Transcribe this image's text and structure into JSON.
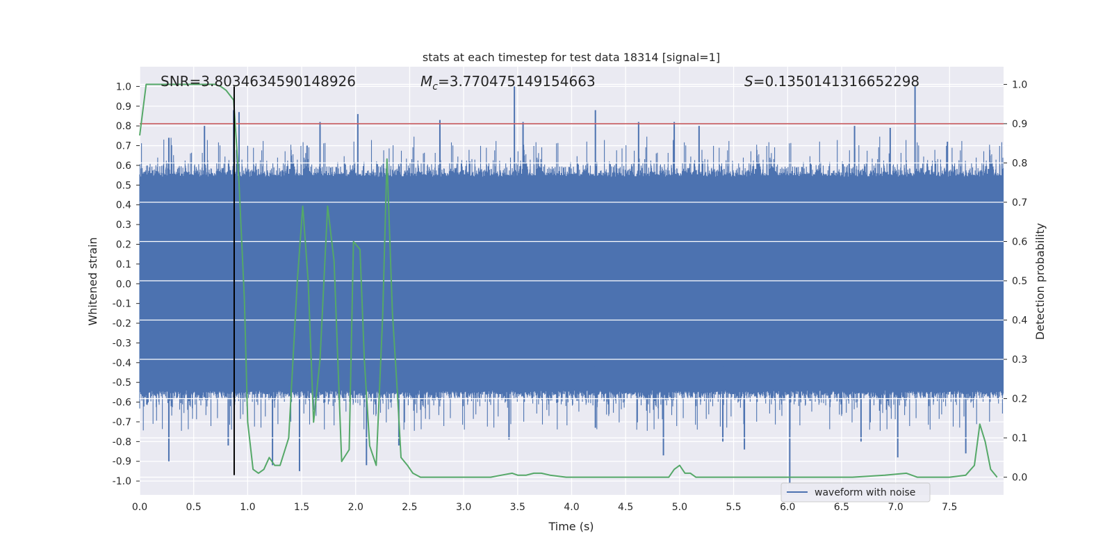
{
  "chart_data": {
    "type": "line",
    "title": "stats at each timestep for test data 18314 [signal=1]",
    "xlabel": "Time (s)",
    "ylabel": "Whitened strain",
    "y2label": "Detection probability",
    "xlim": [
      0.0,
      8.0
    ],
    "ylim": [
      -1.07,
      1.1
    ],
    "y2lim": [
      -0.045,
      1.045
    ],
    "xticks": [
      "0.0",
      "0.5",
      "1.0",
      "1.5",
      "2.0",
      "2.5",
      "3.0",
      "3.5",
      "4.0",
      "4.5",
      "5.0",
      "5.5",
      "6.0",
      "6.5",
      "7.0",
      "7.5"
    ],
    "yticks": [
      "1.0",
      "0.9",
      "0.8",
      "0.7",
      "0.6",
      "0.5",
      "0.4",
      "0.3",
      "0.2",
      "0.1",
      "0.0",
      "-0.1",
      "-0.2",
      "-0.3",
      "-0.4",
      "-0.5",
      "-0.6",
      "-0.7",
      "-0.8",
      "-0.9",
      "-1.0"
    ],
    "y2ticks": [
      "1.0",
      "0.9",
      "0.8",
      "0.7",
      "0.6",
      "0.5",
      "0.4",
      "0.3",
      "0.2",
      "0.1",
      "0.0"
    ],
    "grid": true,
    "legend": {
      "placement": "lower-right",
      "entries": [
        "waveform with noise"
      ]
    },
    "annotations": {
      "snr": "SNR=3.8034634590148926",
      "mc_symbol": "M",
      "mc_sub": "c",
      "mc_value": "=3.770475149154663",
      "s_symbol": "S",
      "s_value": "=0.1350141316652298"
    },
    "threshold": {
      "axis": "right",
      "value": 0.9,
      "color": "#c44e52"
    },
    "marker_line": {
      "x": 0.875,
      "ymin": -0.97,
      "ymax": 1.0,
      "color": "#000000"
    },
    "waveform": {
      "name": "waveform with noise",
      "color": "#4c72b0",
      "sample_rate": 2048,
      "core_amplitude": 0.42,
      "peaks_positive": [
        [
          0.27,
          0.74
        ],
        [
          0.6,
          0.8
        ],
        [
          0.87,
          0.88
        ],
        [
          0.92,
          0.87
        ],
        [
          1.55,
          0.7
        ],
        [
          1.67,
          0.82
        ],
        [
          2.02,
          0.86
        ],
        [
          2.78,
          0.83
        ],
        [
          3.47,
          1.0
        ],
        [
          3.55,
          0.82
        ],
        [
          4.22,
          0.88
        ],
        [
          4.62,
          0.82
        ],
        [
          4.95,
          0.82
        ],
        [
          5.18,
          0.8
        ],
        [
          6.62,
          0.8
        ],
        [
          6.95,
          0.79
        ],
        [
          7.18,
          1.0
        ],
        [
          7.48,
          0.72
        ]
      ],
      "peaks_negative": [
        [
          0.27,
          -0.9
        ],
        [
          0.82,
          -0.82
        ],
        [
          1.23,
          -0.92
        ],
        [
          1.48,
          -0.95
        ],
        [
          2.1,
          -0.92
        ],
        [
          2.4,
          -0.82
        ],
        [
          3.42,
          -0.79
        ],
        [
          4.22,
          -0.73
        ],
        [
          4.85,
          -0.87
        ],
        [
          5.4,
          -0.8
        ],
        [
          5.6,
          -0.84
        ],
        [
          6.02,
          -1.01
        ],
        [
          6.68,
          -0.8
        ],
        [
          7.02,
          -0.88
        ],
        [
          7.65,
          -0.86
        ]
      ]
    },
    "detection_probability": {
      "color": "#55a868",
      "x": [
        0.0,
        0.06,
        0.15,
        0.3,
        0.45,
        0.6,
        0.7,
        0.75,
        0.8,
        0.87,
        0.92,
        0.97,
        1.0,
        1.05,
        1.1,
        1.15,
        1.2,
        1.25,
        1.3,
        1.38,
        1.46,
        1.51,
        1.56,
        1.61,
        1.67,
        1.74,
        1.8,
        1.87,
        1.94,
        1.98,
        2.04,
        2.08,
        2.13,
        2.19,
        2.25,
        2.29,
        2.34,
        2.39,
        2.42,
        2.48,
        2.53,
        2.6,
        2.68,
        2.78,
        3.0,
        3.25,
        3.35,
        3.45,
        3.5,
        3.58,
        3.65,
        3.72,
        3.8,
        3.95,
        4.15,
        4.5,
        4.9,
        4.95,
        5.0,
        5.05,
        5.1,
        5.15,
        5.3,
        5.55,
        5.9,
        6.2,
        6.6,
        6.9,
        7.1,
        7.2,
        7.25,
        7.5,
        7.65,
        7.73,
        7.78,
        7.83,
        7.88,
        7.94
      ],
      "y": [
        0.87,
        1.0,
        1.0,
        1.0,
        1.0,
        1.0,
        1.0,
        0.995,
        0.985,
        0.96,
        0.75,
        0.45,
        0.14,
        0.02,
        0.01,
        0.02,
        0.05,
        0.03,
        0.03,
        0.1,
        0.5,
        0.69,
        0.5,
        0.14,
        0.3,
        0.69,
        0.55,
        0.04,
        0.07,
        0.6,
        0.58,
        0.3,
        0.08,
        0.03,
        0.41,
        0.81,
        0.42,
        0.2,
        0.05,
        0.03,
        0.01,
        0.0,
        0.0,
        0.0,
        0.0,
        0.0,
        0.005,
        0.01,
        0.005,
        0.005,
        0.01,
        0.01,
        0.005,
        0.0,
        0.0,
        0.0,
        0.0,
        0.02,
        0.03,
        0.01,
        0.01,
        0.0,
        0.0,
        0.0,
        0.0,
        0.0,
        0.0,
        0.005,
        0.01,
        0.0,
        0.0,
        0.0,
        0.005,
        0.03,
        0.135,
        0.09,
        0.02,
        0.0
      ]
    }
  }
}
